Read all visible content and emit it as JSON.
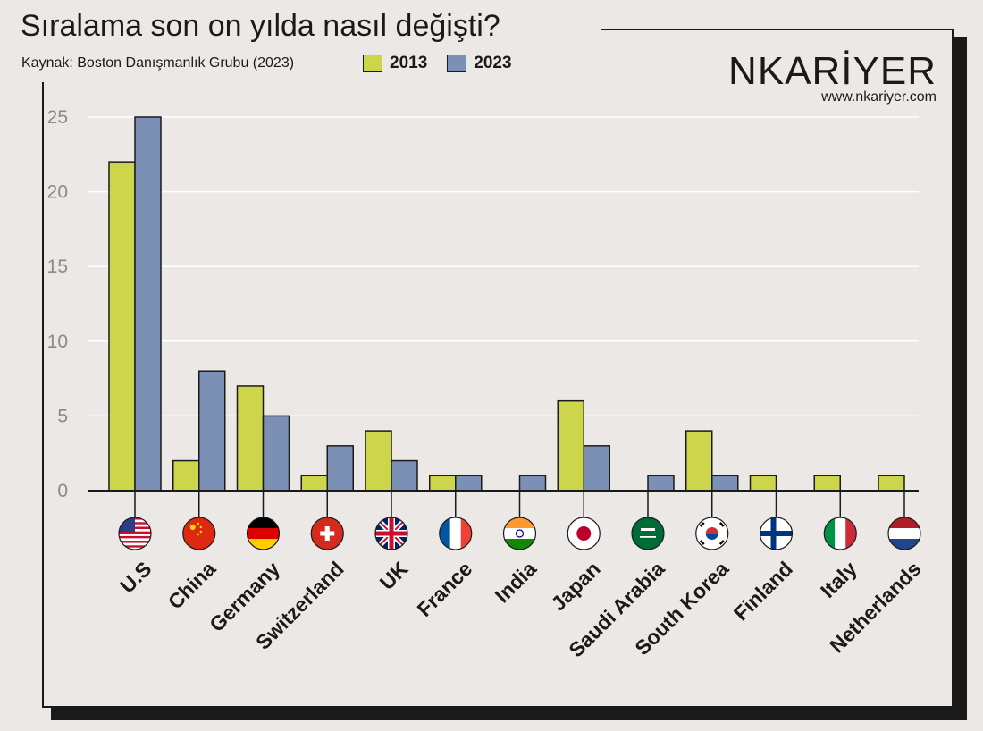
{
  "header": {
    "title": "Sıralama son on yılda nasıl değişti?",
    "source": "Kaynak: Boston Danışmanlık Grubu (2023)"
  },
  "brand": {
    "name": "NKARİYER",
    "url": "www.nkariyer.com"
  },
  "colors": {
    "series_2013": "#cdd64a",
    "series_2023": "#7c8fb4",
    "background": "#ece8e6",
    "grid": "#ffffff",
    "axis": "#1a1a1a"
  },
  "chart_data": {
    "type": "bar",
    "title": "Sıralama son on yılda nasıl değişti?",
    "xlabel": "",
    "ylabel": "",
    "ylim": [
      0,
      25
    ],
    "yticks": [
      0,
      5,
      10,
      15,
      20,
      25
    ],
    "grid": true,
    "legend_position": "top",
    "categories": [
      "U.S",
      "China",
      "Germany",
      "Switzerland",
      "UK",
      "France",
      "India",
      "Japan",
      "Saudi Arabia",
      "South Korea",
      "Finland",
      "Italy",
      "Netherlands"
    ],
    "flags": [
      "us-flag-icon",
      "china-flag-icon",
      "germany-flag-icon",
      "switzerland-flag-icon",
      "uk-flag-icon",
      "france-flag-icon",
      "india-flag-icon",
      "japan-flag-icon",
      "saudi-arabia-flag-icon",
      "south-korea-flag-icon",
      "finland-flag-icon",
      "italy-flag-icon",
      "netherlands-flag-icon"
    ],
    "series": [
      {
        "name": "2013",
        "values": [
          22,
          2,
          7,
          1,
          4,
          1,
          0,
          6,
          0,
          4,
          1,
          1,
          1
        ]
      },
      {
        "name": "2023",
        "values": [
          25,
          8,
          5,
          3,
          2,
          1,
          1,
          3,
          1,
          1,
          0,
          0,
          0
        ]
      }
    ]
  }
}
